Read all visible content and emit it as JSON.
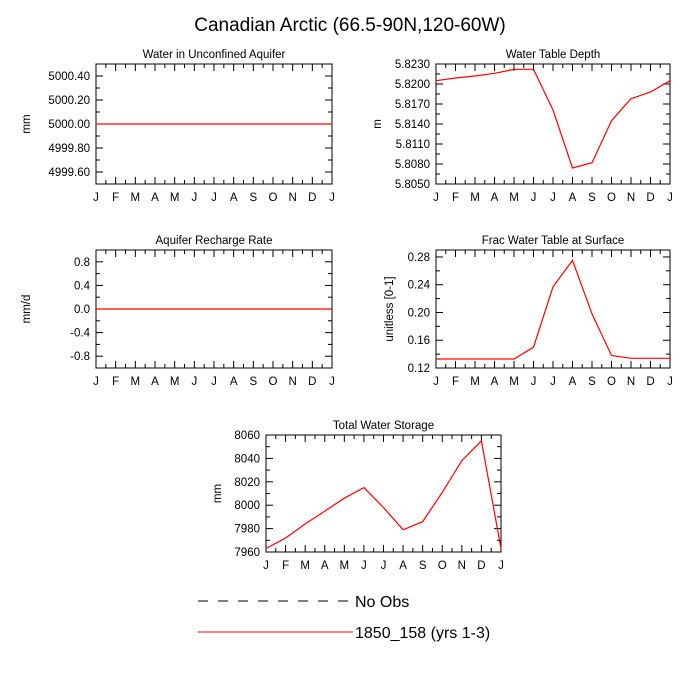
{
  "figure": {
    "title": "Canadian Arctic (66.5-90N,120-60W)"
  },
  "legend": {
    "entries": [
      {
        "label": "No Obs",
        "color": "#000000",
        "style": "dashed"
      },
      {
        "label": "1850_158 (yrs 1-3)",
        "color": "#ff0000",
        "style": "solid"
      }
    ]
  },
  "chart_data": [
    {
      "type": "line",
      "title": "Water in Unconfined Aquifer",
      "xlabel": "",
      "ylabel": "mm",
      "x": [
        "J",
        "F",
        "M",
        "A",
        "M",
        "J",
        "J",
        "A",
        "S",
        "O",
        "N",
        "D",
        "J"
      ],
      "ylim": [
        4999.5,
        5000.5
      ],
      "yticks": [
        4999.6,
        4999.8,
        5000.0,
        5000.2,
        5000.4
      ],
      "ytick_labels": [
        "4999.60",
        "4999.80",
        "5000.00",
        "5000.20",
        "5000.40"
      ],
      "series": [
        {
          "values": [
            5000,
            5000,
            5000,
            5000,
            5000,
            5000,
            5000,
            5000,
            5000,
            5000,
            5000,
            5000,
            5000
          ],
          "color": "#ff0000"
        }
      ]
    },
    {
      "type": "line",
      "title": "Water Table Depth",
      "xlabel": "",
      "ylabel": "m",
      "x": [
        "J",
        "F",
        "M",
        "A",
        "M",
        "J",
        "J",
        "A",
        "S",
        "O",
        "N",
        "D",
        "J"
      ],
      "ylim": [
        5.805,
        5.823
      ],
      "yticks": [
        5.805,
        5.808,
        5.811,
        5.814,
        5.817,
        5.82,
        5.823
      ],
      "ytick_labels": [
        "5.8050",
        "5.8080",
        "5.8110",
        "5.8140",
        "5.8170",
        "5.8200",
        "5.8230"
      ],
      "series": [
        {
          "values": [
            5.8205,
            5.8209,
            5.8212,
            5.8216,
            5.8222,
            5.8222,
            5.8161,
            5.8074,
            5.8082,
            5.8145,
            5.8178,
            5.8188,
            5.8205
          ],
          "color": "#ff0000"
        }
      ]
    },
    {
      "type": "line",
      "title": "Aquifer Recharge Rate",
      "xlabel": "",
      "ylabel": "mm/d",
      "x": [
        "J",
        "F",
        "M",
        "A",
        "M",
        "J",
        "J",
        "A",
        "S",
        "O",
        "N",
        "D",
        "J"
      ],
      "ylim": [
        -1.0,
        1.0
      ],
      "yticks": [
        -0.8,
        -0.4,
        0.0,
        0.4,
        0.8
      ],
      "ytick_labels": [
        "-0.8",
        "-0.4",
        "0.0",
        "0.4",
        "0.8"
      ],
      "series": [
        {
          "values": [
            0,
            0,
            0,
            0,
            0,
            0,
            0,
            0,
            0,
            0,
            0,
            0,
            0
          ],
          "color": "#ff0000"
        }
      ]
    },
    {
      "type": "line",
      "title": "Frac Water Table at Surface",
      "xlabel": "",
      "ylabel": "unitless [0-1]",
      "x": [
        "J",
        "F",
        "M",
        "A",
        "M",
        "J",
        "J",
        "A",
        "S",
        "O",
        "N",
        "D",
        "J"
      ],
      "ylim": [
        0.12,
        0.29
      ],
      "yticks": [
        0.12,
        0.16,
        0.2,
        0.24,
        0.28
      ],
      "ytick_labels": [
        "0.12",
        "0.16",
        "0.20",
        "0.24",
        "0.28"
      ],
      "series": [
        {
          "values": [
            0.133,
            0.133,
            0.133,
            0.133,
            0.133,
            0.15,
            0.237,
            0.275,
            0.198,
            0.138,
            0.134,
            0.134,
            0.134
          ],
          "color": "#ff0000"
        }
      ]
    },
    {
      "type": "line",
      "title": "Total Water Storage",
      "xlabel": "",
      "ylabel": "mm",
      "x": [
        "J",
        "F",
        "M",
        "A",
        "M",
        "J",
        "J",
        "A",
        "S",
        "O",
        "N",
        "D",
        "J"
      ],
      "ylim": [
        7960,
        8060
      ],
      "yticks": [
        7960,
        7980,
        8000,
        8020,
        8040,
        8060
      ],
      "ytick_labels": [
        "7960",
        "7980",
        "8000",
        "8020",
        "8040",
        "8060"
      ],
      "series": [
        {
          "values": [
            7963,
            7972,
            7984,
            7995,
            8006,
            8015,
            7998,
            7979,
            7986,
            8011,
            8038,
            8055,
            7963
          ],
          "color": "#ff0000"
        }
      ]
    }
  ]
}
